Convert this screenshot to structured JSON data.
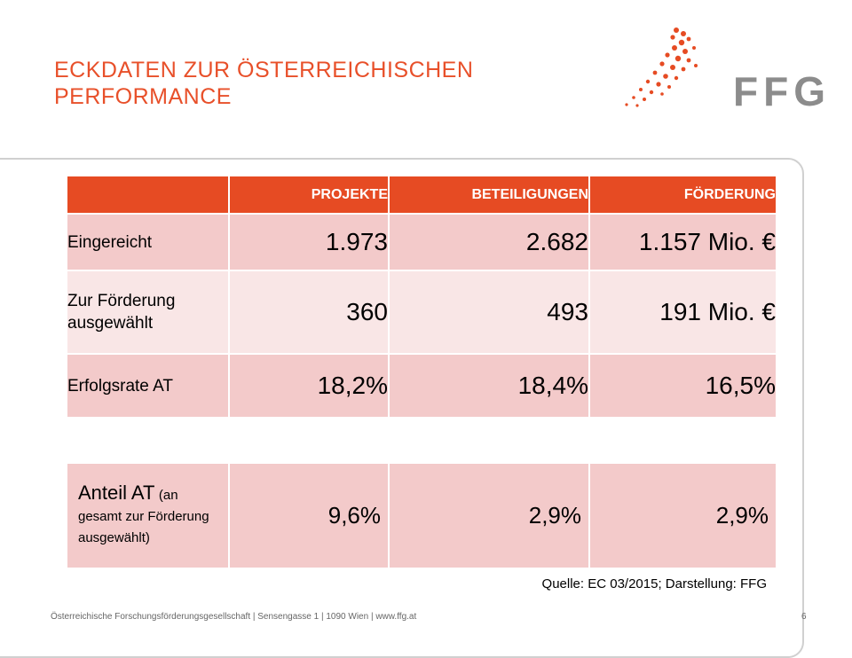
{
  "header": {
    "title": "ECKDATEN ZUR ÖSTERREICHISCHEN PERFORMANCE",
    "logo_text": "FFG",
    "accent_color": "#e64b23"
  },
  "table": {
    "columns": [
      "",
      "PROJEKTE",
      "BETEILIGUNGEN",
      "FÖRDERUNG"
    ],
    "rows": [
      {
        "label": "Eingereicht",
        "values": [
          "1.973",
          "2.682",
          "1.157 Mio. €"
        ]
      },
      {
        "label": "Zur Förderung ausgewählt",
        "values": [
          "360",
          "493",
          "191 Mio. €"
        ]
      },
      {
        "label": "Erfolgsrate AT",
        "values": [
          "18,2%",
          "18,4%",
          "16,5%"
        ]
      }
    ]
  },
  "share_table": {
    "label_main": "Anteil AT",
    "label_note": "(an gesamt zur Förderung ausgewählt)",
    "values": [
      "9,6%",
      "2,9%",
      "2,9%"
    ]
  },
  "source": "Quelle: EC 03/2015; Darstellung: FFG",
  "footer": {
    "text": "Österreichische Forschungsförderungsgesellschaft | Sensengasse 1 | 1090 Wien | www.ffg.at",
    "page_number": "6"
  }
}
